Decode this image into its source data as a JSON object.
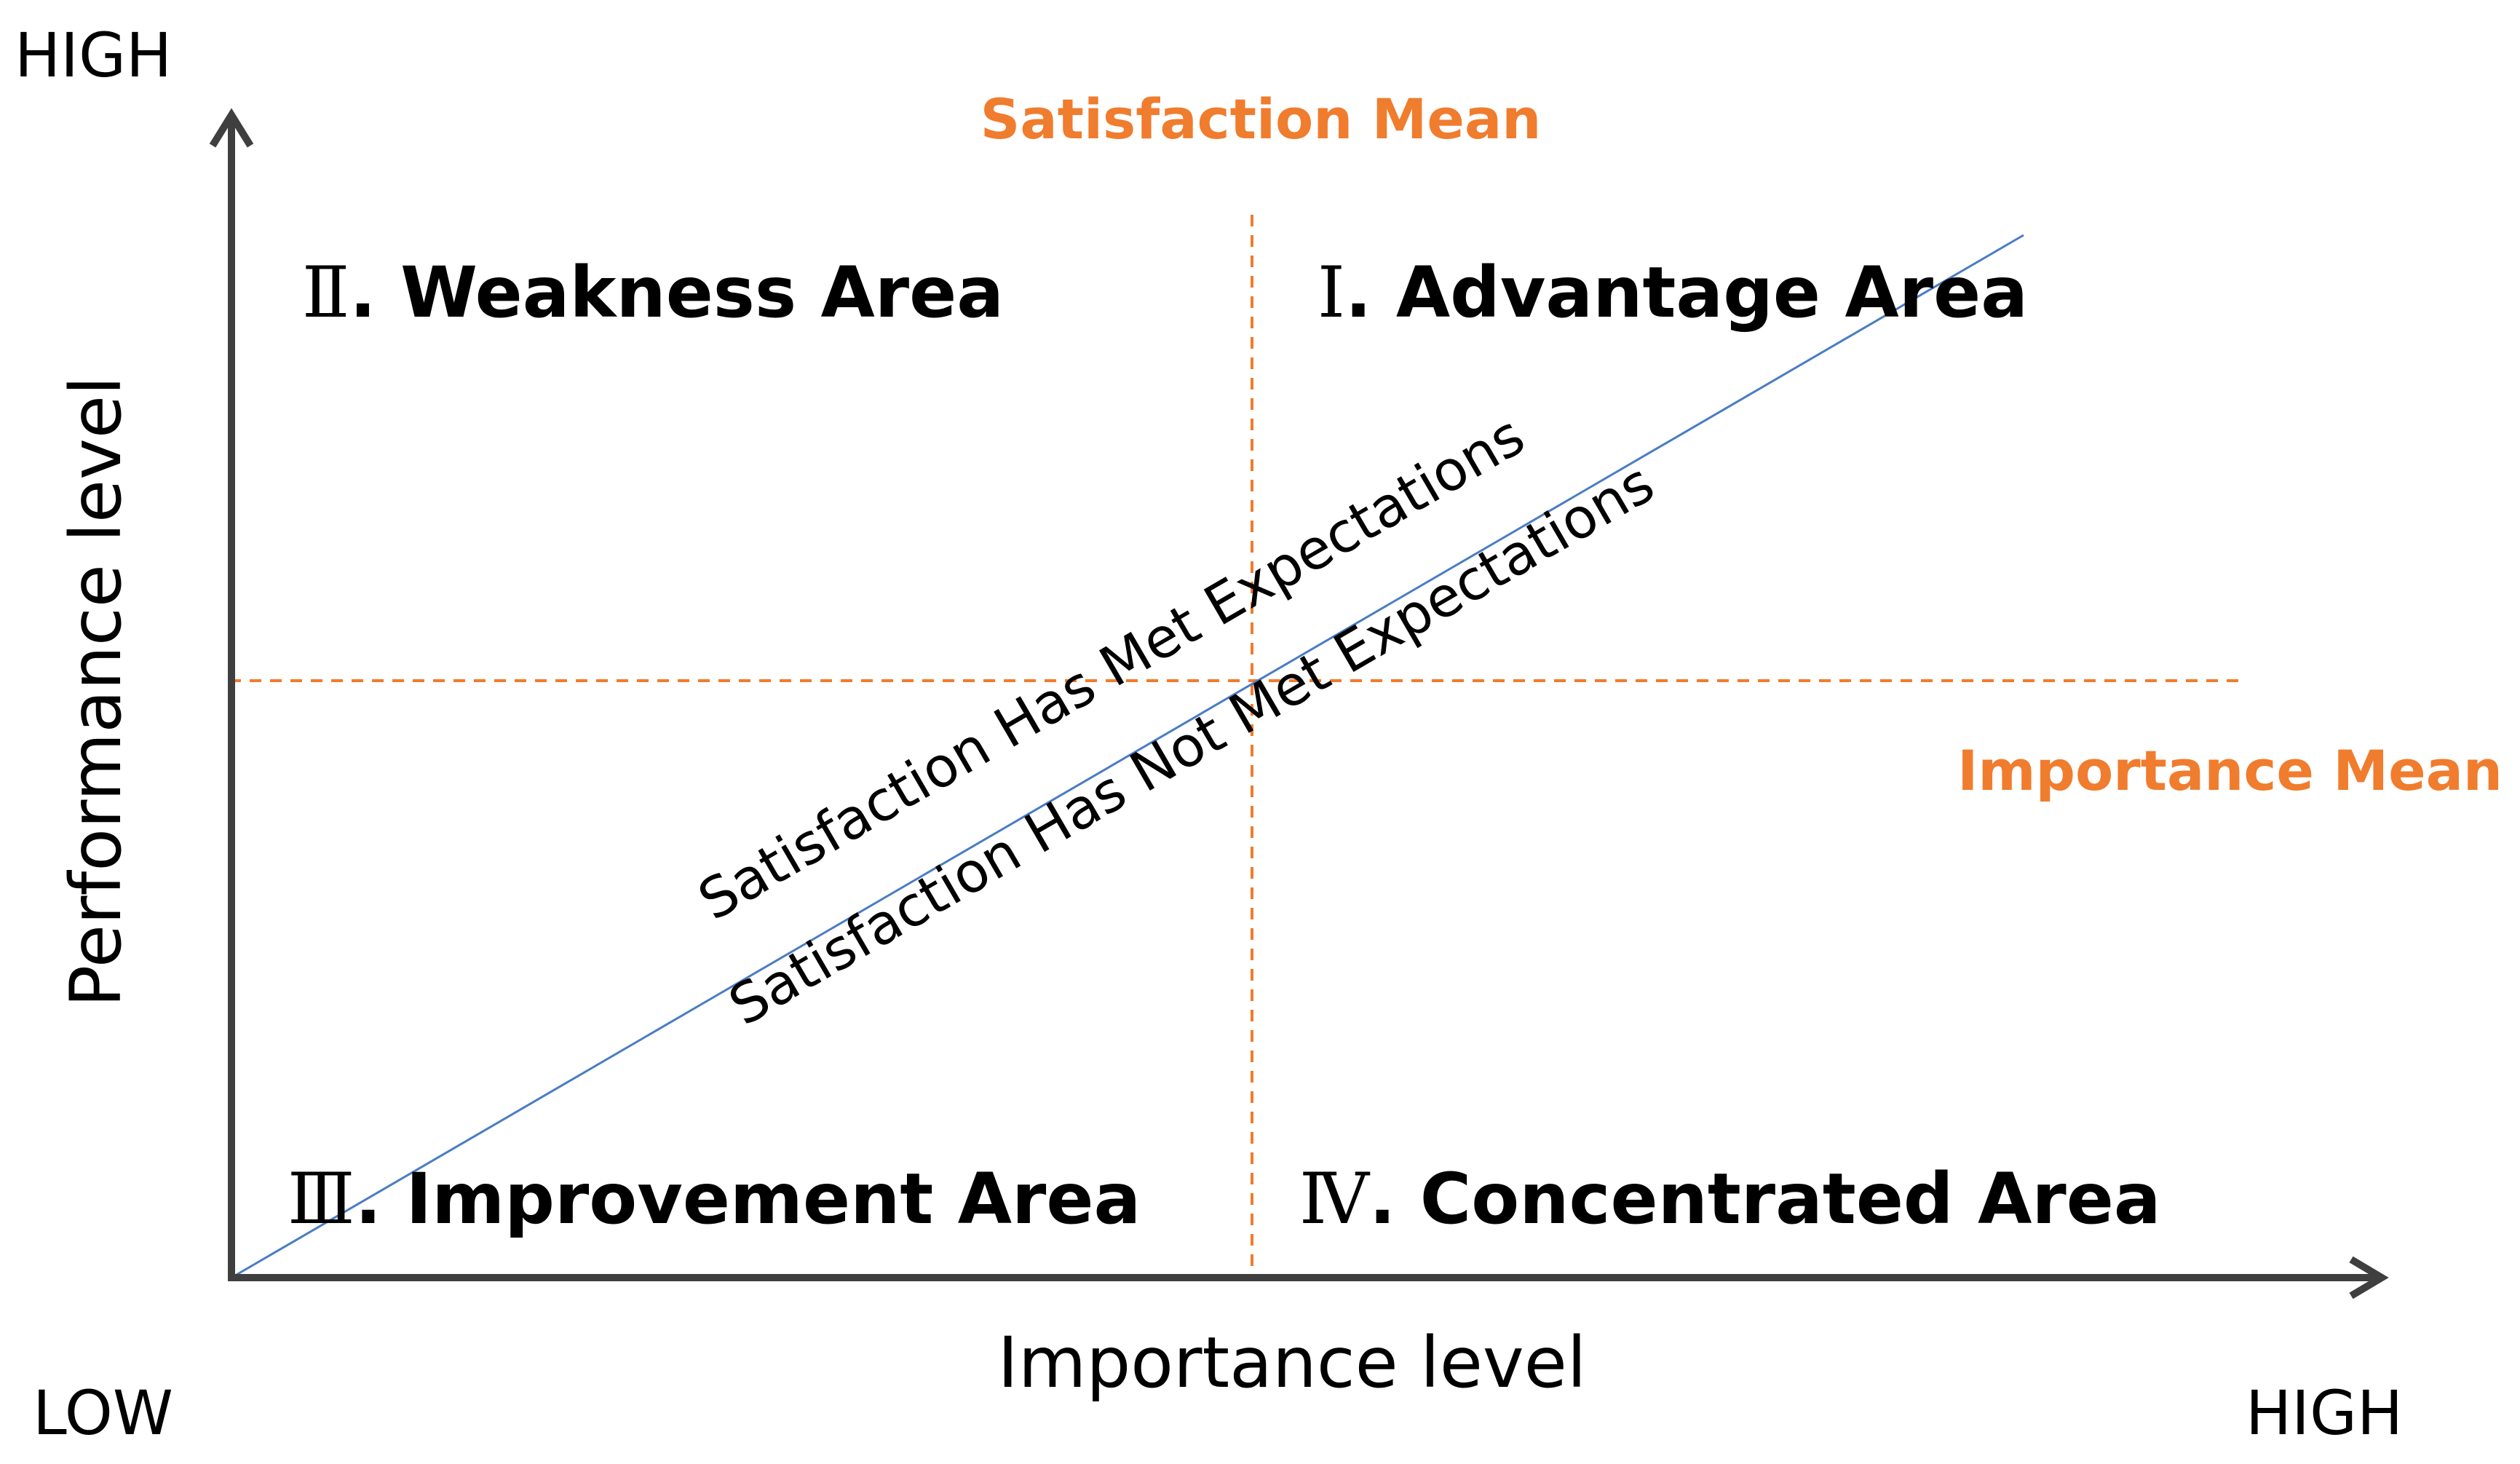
{
  "diagram": {
    "corner_labels": {
      "y_high": "HIGH",
      "x_low": "LOW",
      "x_high": "HIGH"
    },
    "axes": {
      "x_title": "Importance level",
      "y_title": "Performance level"
    },
    "reference_lines": {
      "satisfaction_mean": "Satisfaction Mean",
      "importance_mean": "Importance Mean"
    },
    "quadrants": [
      {
        "numeral": "Ⅰ",
        "name": ". Advantage Area"
      },
      {
        "numeral": "Ⅱ",
        "name": ". Weakness Area"
      },
      {
        "numeral": "Ⅲ",
        "name": ". Improvement Area"
      },
      {
        "numeral": "Ⅳ",
        "name": ". Concentrated Area"
      }
    ],
    "diagonal": {
      "above_label": "Satisfaction Has Met Expectations",
      "below_label": "Satisfaction Has Not Met Expectations"
    },
    "colors": {
      "axis": "#3f3f3f",
      "mean_line": "#f07c2e",
      "diagonal": "#4a7cc4"
    }
  }
}
